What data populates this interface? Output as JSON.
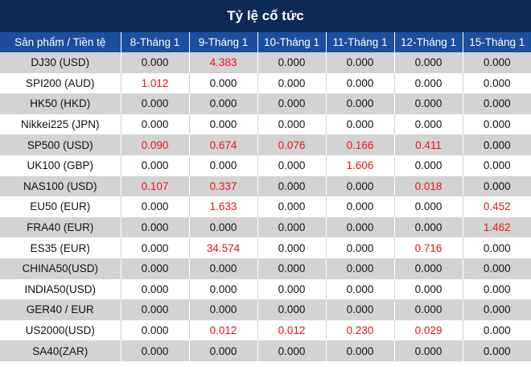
{
  "title": "Tỷ lệ cổ tức",
  "columns": [
    "Sản phẩm / Tiền tệ",
    "8-Tháng 1",
    "9-Tháng 1",
    "10-Tháng 1",
    "11-Tháng 1",
    "12-Tháng 1",
    "15-Tháng 1"
  ],
  "colors": {
    "title_bg": "#0b2a55",
    "header_bg": "#1a4f9e",
    "positive": "#e8141b",
    "row_alt": "#d3d3d3"
  },
  "rows": [
    {
      "name": "DJ30 (USD)",
      "values": [
        "0.000",
        "4.383",
        "0.000",
        "0.000",
        "0.000",
        "0.000"
      ]
    },
    {
      "name": "SPI200 (AUD)",
      "values": [
        "1.012",
        "0.000",
        "0.000",
        "0.000",
        "0.000",
        "0.000"
      ]
    },
    {
      "name": "HK50 (HKD)",
      "values": [
        "0.000",
        "0.000",
        "0.000",
        "0.000",
        "0.000",
        "0.000"
      ]
    },
    {
      "name": "Nikkei225 (JPN)",
      "values": [
        "0.000",
        "0.000",
        "0.000",
        "0.000",
        "0.000",
        "0.000"
      ]
    },
    {
      "name": "SP500 (USD)",
      "values": [
        "0.090",
        "0.674",
        "0.076",
        "0.166",
        "0.411",
        "0.000"
      ]
    },
    {
      "name": "UK100 (GBP)",
      "values": [
        "0.000",
        "0.000",
        "0.000",
        "1.606",
        "0.000",
        "0.000"
      ]
    },
    {
      "name": "NAS100 (USD)",
      "values": [
        "0.107",
        "0.337",
        "0.000",
        "0.000",
        "0.018",
        "0.000"
      ]
    },
    {
      "name": "EU50 (EUR)",
      "values": [
        "0.000",
        "1.633",
        "0.000",
        "0.000",
        "0.000",
        "0.452"
      ]
    },
    {
      "name": "FRA40 (EUR)",
      "values": [
        "0.000",
        "0.000",
        "0.000",
        "0.000",
        "0.000",
        "1.462"
      ]
    },
    {
      "name": "ES35 (EUR)",
      "values": [
        "0.000",
        "34.574",
        "0.000",
        "0.000",
        "0.716",
        "0.000"
      ]
    },
    {
      "name": "CHINA50(USD)",
      "values": [
        "0.000",
        "0.000",
        "0.000",
        "0.000",
        "0.000",
        "0.000"
      ]
    },
    {
      "name": "INDIA50(USD)",
      "values": [
        "0.000",
        "0.000",
        "0.000",
        "0.000",
        "0.000",
        "0.000"
      ]
    },
    {
      "name": "GER40 / EUR",
      "values": [
        "0.000",
        "0.000",
        "0.000",
        "0.000",
        "0.000",
        "0.000"
      ]
    },
    {
      "name": "US2000(USD)",
      "values": [
        "0.000",
        "0.012",
        "0.012",
        "0.230",
        "0.029",
        "0.000"
      ]
    },
    {
      "name": "SA40(ZAR)",
      "values": [
        "0.000",
        "0.000",
        "0.000",
        "0.000",
        "0.000",
        "0.000"
      ]
    }
  ]
}
